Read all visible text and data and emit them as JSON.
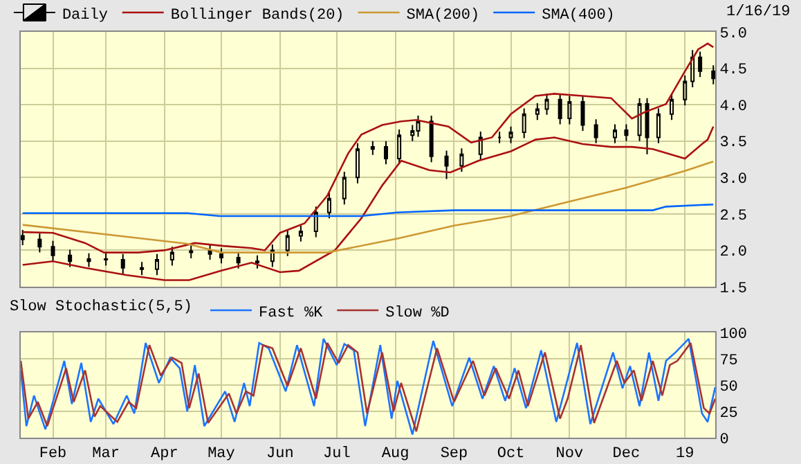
{
  "chart_data": [
    {
      "type": "candlestick",
      "annotations": [
        "1/16/19"
      ],
      "legend": "top",
      "grid": true,
      "tick_labels": "y",
      "xlim": [
        "2018-01-15",
        "2019-01-17"
      ],
      "ylim": [
        1.5,
        5.0
      ],
      "yticks": [
        {
          "value": 1.5,
          "label": "1.5"
        },
        {
          "value": 2.0,
          "label": "2.0"
        },
        {
          "value": 2.5,
          "label": "2.5"
        },
        {
          "value": 3.0,
          "label": "3.0"
        },
        {
          "value": 3.5,
          "label": "3.5"
        },
        {
          "value": 4.0,
          "label": "4.0"
        },
        {
          "value": 4.5,
          "label": "4.5"
        },
        {
          "value": 5.0,
          "label": "5.0"
        }
      ],
      "xticks": [
        "2018-02-01",
        "2018-03-01",
        "2018-04-01",
        "2018-05-01",
        "2018-06-01",
        "2018-07-01",
        "2018-08-01",
        "2018-09-01",
        "2018-10-01",
        "2018-11-01",
        "2018-12-01",
        "2019-01-01"
      ],
      "series": [
        {
          "name": "Daily",
          "type": "candlestick",
          "color": "#000000",
          "x": [
            "2018-01-16",
            "2018-01-25",
            "2018-02-01",
            "2018-02-10",
            "2018-02-20",
            "2018-03-01",
            "2018-03-10",
            "2018-03-20",
            "2018-03-28",
            "2018-04-05",
            "2018-04-15",
            "2018-04-25",
            "2018-05-01",
            "2018-05-10",
            "2018-05-20",
            "2018-05-28",
            "2018-06-05",
            "2018-06-12",
            "2018-06-20",
            "2018-06-27",
            "2018-07-05",
            "2018-07-12",
            "2018-07-20",
            "2018-07-27",
            "2018-08-03",
            "2018-08-10",
            "2018-08-13",
            "2018-08-20",
            "2018-08-28",
            "2018-09-05",
            "2018-09-15",
            "2018-09-25",
            "2018-10-01",
            "2018-10-08",
            "2018-10-15",
            "2018-10-20",
            "2018-10-27",
            "2018-11-01",
            "2018-11-08",
            "2018-11-15",
            "2018-11-25",
            "2018-12-01",
            "2018-12-08",
            "2018-12-12",
            "2018-12-18",
            "2018-12-25",
            "2019-01-01",
            "2019-01-05",
            "2019-01-09",
            "2019-01-16"
          ],
          "ohlc": [
            [
              2.2,
              2.28,
              2.07,
              2.15
            ],
            [
              2.15,
              2.23,
              1.97,
              2.05
            ],
            [
              2.05,
              2.13,
              1.85,
              1.93
            ],
            [
              1.93,
              2.01,
              1.77,
              1.85
            ],
            [
              1.85,
              1.96,
              1.77,
              1.88
            ],
            [
              1.88,
              1.96,
              1.79,
              1.87
            ],
            [
              1.87,
              1.95,
              1.68,
              1.76
            ],
            [
              1.76,
              1.84,
              1.66,
              1.74
            ],
            [
              1.74,
              1.95,
              1.66,
              1.87
            ],
            [
              1.87,
              2.05,
              1.79,
              1.97
            ],
            [
              1.97,
              2.07,
              1.89,
              1.99
            ],
            [
              1.99,
              2.07,
              1.87,
              1.95
            ],
            [
              1.95,
              2.03,
              1.82,
              1.9
            ],
            [
              1.9,
              1.98,
              1.75,
              1.83
            ],
            [
              1.83,
              1.93,
              1.75,
              1.85
            ],
            [
              1.85,
              2.08,
              1.77,
              2.0
            ],
            [
              2.0,
              2.28,
              1.92,
              2.2
            ],
            [
              2.2,
              2.34,
              2.12,
              2.26
            ],
            [
              2.26,
              2.6,
              2.18,
              2.52
            ],
            [
              2.52,
              2.79,
              2.44,
              2.71
            ],
            [
              2.71,
              3.08,
              2.63,
              3.0
            ],
            [
              3.0,
              3.47,
              2.92,
              3.39
            ],
            [
              3.39,
              3.5,
              3.31,
              3.42
            ],
            [
              3.42,
              3.5,
              3.18,
              3.26
            ],
            [
              3.26,
              3.66,
              3.18,
              3.58
            ],
            [
              3.58,
              3.72,
              3.5,
              3.64
            ],
            [
              3.64,
              3.85,
              3.56,
              3.77
            ],
            [
              3.77,
              3.85,
              3.21,
              3.29
            ],
            [
              3.29,
              3.37,
              2.98,
              3.16
            ],
            [
              3.16,
              3.4,
              3.08,
              3.32
            ],
            [
              3.32,
              3.63,
              3.24,
              3.55
            ],
            [
              3.55,
              3.63,
              3.47,
              3.55
            ],
            [
              3.55,
              3.7,
              3.47,
              3.62
            ],
            [
              3.62,
              3.95,
              3.54,
              3.87
            ],
            [
              3.87,
              4.02,
              3.79,
              3.94
            ],
            [
              3.94,
              4.15,
              3.86,
              4.07
            ],
            [
              4.07,
              4.15,
              3.73,
              3.81
            ],
            [
              3.81,
              4.12,
              3.73,
              4.04
            ],
            [
              4.04,
              4.12,
              3.64,
              3.72
            ],
            [
              3.72,
              3.8,
              3.47,
              3.55
            ],
            [
              3.55,
              3.73,
              3.47,
              3.65
            ],
            [
              3.65,
              3.73,
              3.5,
              3.58
            ],
            [
              3.58,
              4.09,
              3.5,
              4.01
            ],
            [
              4.01,
              4.09,
              3.32,
              3.55
            ],
            [
              3.55,
              3.95,
              3.47,
              3.87
            ],
            [
              3.87,
              4.15,
              3.79,
              4.07
            ],
            [
              4.07,
              4.4,
              3.99,
              4.32
            ],
            [
              4.32,
              4.75,
              4.24,
              4.65
            ],
            [
              4.65,
              4.73,
              4.38,
              4.46
            ],
            [
              4.46,
              4.54,
              4.28,
              4.36
            ]
          ]
        },
        {
          "name": "Bollinger Bands(20)",
          "type": "line",
          "color": "#aa1111",
          "x": [
            "2018-01-16",
            "2018-02-01",
            "2018-02-18",
            "2018-02-28",
            "2018-03-18",
            "2018-04-01",
            "2018-04-17",
            "2018-05-02",
            "2018-05-17",
            "2018-05-24",
            "2018-06-01",
            "2018-06-14",
            "2018-06-26",
            "2018-07-07",
            "2018-07-14",
            "2018-07-25",
            "2018-08-04",
            "2018-08-12",
            "2018-08-29",
            "2018-09-10",
            "2018-09-21",
            "2018-10-01",
            "2018-10-14",
            "2018-10-24",
            "2018-11-08",
            "2018-11-23",
            "2018-12-04",
            "2018-12-11",
            "2018-12-22",
            "2019-01-01",
            "2019-01-08",
            "2019-01-13",
            "2019-01-16"
          ],
          "values": [
            2.25,
            2.24,
            2.1,
            1.97,
            1.97,
            2.0,
            2.1,
            2.06,
            2.03,
            2.0,
            2.24,
            2.37,
            2.75,
            3.33,
            3.59,
            3.72,
            3.77,
            3.79,
            3.7,
            3.48,
            3.55,
            3.87,
            4.12,
            4.15,
            4.12,
            4.09,
            3.81,
            3.9,
            4.01,
            4.46,
            4.76,
            4.84,
            4.79
          ]
        },
        {
          "type": "line",
          "color": "#aa1111",
          "x": [
            "2018-01-16",
            "2018-02-01",
            "2018-02-18",
            "2018-03-12",
            "2018-04-01",
            "2018-04-14",
            "2018-05-01",
            "2018-05-17",
            "2018-06-01",
            "2018-06-11",
            "2018-06-30",
            "2018-07-14",
            "2018-07-25",
            "2018-08-04",
            "2018-08-19",
            "2018-08-30",
            "2018-09-14",
            "2018-10-01",
            "2018-10-14",
            "2018-10-24",
            "2018-11-08",
            "2018-11-23",
            "2018-12-04",
            "2018-12-15",
            "2019-01-01",
            "2019-01-10",
            "2019-01-13",
            "2019-01-16"
          ],
          "values": [
            1.8,
            1.85,
            1.76,
            1.66,
            1.59,
            1.59,
            1.72,
            1.83,
            1.7,
            1.72,
            2.0,
            2.44,
            2.89,
            3.23,
            3.1,
            3.07,
            3.23,
            3.36,
            3.52,
            3.55,
            3.46,
            3.42,
            3.42,
            3.39,
            3.26,
            3.46,
            3.52,
            3.7
          ]
        },
        {
          "name": "SMA(200)",
          "type": "line",
          "color": "#cc9933",
          "x": [
            "2018-01-16",
            "2018-04-13",
            "2018-05-01",
            "2018-06-26",
            "2018-08-02",
            "2018-09-01",
            "2018-10-01",
            "2018-11-01",
            "2018-12-01",
            "2019-01-01",
            "2019-01-16"
          ],
          "values": [
            2.35,
            2.09,
            1.97,
            1.97,
            2.16,
            2.34,
            2.47,
            2.67,
            2.86,
            3.09,
            3.22
          ]
        },
        {
          "name": "SMA(400)",
          "type": "line",
          "color": "#0066ff",
          "x": [
            "2018-01-16",
            "2018-04-13",
            "2018-04-30",
            "2018-07-14",
            "2018-08-02",
            "2018-09-01",
            "2018-12-15",
            "2018-12-22",
            "2019-01-16"
          ],
          "values": [
            2.51,
            2.51,
            2.47,
            2.47,
            2.52,
            2.55,
            2.55,
            2.6,
            2.63
          ]
        }
      ]
    },
    {
      "type": "line",
      "legend_title": "Slow Stochastic(5,5)",
      "legend": "top",
      "grid": true,
      "xlim": [
        "2018-01-15",
        "2019-01-17"
      ],
      "ylim": [
        0,
        100
      ],
      "yticks": [
        0,
        25,
        50,
        75,
        100
      ],
      "xticks": [
        {
          "value": "2018-02-01",
          "label": "Feb"
        },
        {
          "value": "2018-03-01",
          "label": "Mar"
        },
        {
          "value": "2018-04-01",
          "label": "Apr"
        },
        {
          "value": "2018-05-01",
          "label": "May"
        },
        {
          "value": "2018-06-01",
          "label": "Jun"
        },
        {
          "value": "2018-07-01",
          "label": "Jul"
        },
        {
          "value": "2018-08-01",
          "label": "Aug"
        },
        {
          "value": "2018-09-01",
          "label": "Sep"
        },
        {
          "value": "2018-10-01",
          "label": "Oct"
        },
        {
          "value": "2018-11-01",
          "label": "Nov"
        },
        {
          "value": "2018-12-01",
          "label": "Dec"
        },
        {
          "value": "2019-01-01",
          "label": "19"
        }
      ],
      "series": [
        {
          "name": "Fast %K",
          "color": "#1a75ff",
          "x": [
            "2018-01-15",
            "2018-01-18",
            "2018-01-22",
            "2018-01-28",
            "2018-02-07",
            "2018-02-11",
            "2018-02-16",
            "2018-02-21",
            "2018-02-25",
            "2018-03-05",
            "2018-03-12",
            "2018-03-16",
            "2018-03-22",
            "2018-03-29",
            "2018-04-04",
            "2018-04-09",
            "2018-04-13",
            "2018-04-17",
            "2018-04-22",
            "2018-05-03",
            "2018-05-08",
            "2018-05-13",
            "2018-05-16",
            "2018-05-21",
            "2018-05-26",
            "2018-06-04",
            "2018-06-10",
            "2018-06-19",
            "2018-06-24",
            "2018-07-01",
            "2018-07-05",
            "2018-07-10",
            "2018-07-16",
            "2018-07-24",
            "2018-07-30",
            "2018-08-02",
            "2018-08-10",
            "2018-08-21",
            "2018-08-31",
            "2018-09-09",
            "2018-09-16",
            "2018-09-22",
            "2018-09-28",
            "2018-10-03",
            "2018-10-09",
            "2018-10-17",
            "2018-10-25",
            "2018-10-29",
            "2018-11-05",
            "2018-11-12",
            "2018-11-24",
            "2018-11-29",
            "2018-12-03",
            "2018-12-08",
            "2018-12-13",
            "2018-12-18",
            "2018-12-22",
            "2018-12-27",
            "2019-01-03",
            "2019-01-10",
            "2019-01-13",
            "2019-01-15",
            "2019-01-17"
          ],
          "values": [
            64,
            11,
            40,
            8,
            73,
            32,
            71,
            15,
            37,
            13,
            40,
            23,
            90,
            52,
            76,
            66,
            25,
            69,
            11,
            44,
            15,
            52,
            30,
            90,
            85,
            44,
            88,
            30,
            94,
            69,
            89,
            83,
            11,
            88,
            18,
            54,
            3,
            92,
            30,
            76,
            37,
            68,
            35,
            66,
            28,
            83,
            15,
            42,
            90,
            13,
            81,
            47,
            68,
            30,
            81,
            35,
            73,
            81,
            94,
            23,
            15,
            32,
            48
          ]
        },
        {
          "name": "Slow %D",
          "color": "#a83232",
          "x": [
            "2018-01-15",
            "2018-01-19",
            "2018-01-24",
            "2018-01-29",
            "2018-02-08",
            "2018-02-12",
            "2018-02-18",
            "2018-02-23",
            "2018-02-26",
            "2018-03-07",
            "2018-03-13",
            "2018-03-17",
            "2018-03-24",
            "2018-03-30",
            "2018-04-05",
            "2018-04-10",
            "2018-04-14",
            "2018-04-19",
            "2018-04-24",
            "2018-05-05",
            "2018-05-09",
            "2018-05-14",
            "2018-05-18",
            "2018-05-23",
            "2018-05-28",
            "2018-06-05",
            "2018-06-12",
            "2018-06-20",
            "2018-06-26",
            "2018-07-02",
            "2018-07-07",
            "2018-07-12",
            "2018-07-17",
            "2018-07-25",
            "2018-07-31",
            "2018-08-04",
            "2018-08-12",
            "2018-08-23",
            "2018-09-01",
            "2018-09-11",
            "2018-09-17",
            "2018-09-23",
            "2018-09-30",
            "2018-10-05",
            "2018-10-10",
            "2018-10-19",
            "2018-10-27",
            "2018-10-31",
            "2018-11-07",
            "2018-11-14",
            "2018-11-26",
            "2018-11-30",
            "2018-12-05",
            "2018-12-09",
            "2018-12-15",
            "2018-12-20",
            "2018-12-24",
            "2018-12-28",
            "2019-01-04",
            "2019-01-11",
            "2019-01-14",
            "2019-01-17"
          ],
          "values": [
            73,
            18,
            34,
            11,
            66,
            34,
            64,
            20,
            30,
            15,
            34,
            28,
            88,
            59,
            76,
            71,
            28,
            61,
            14,
            42,
            23,
            44,
            40,
            88,
            85,
            49,
            85,
            37,
            90,
            71,
            88,
            81,
            23,
            81,
            25,
            52,
            6,
            85,
            34,
            73,
            40,
            66,
            37,
            64,
            30,
            81,
            18,
            37,
            88,
            14,
            73,
            52,
            64,
            35,
            73,
            40,
            69,
            73,
            90,
            28,
            23,
            37
          ]
        }
      ]
    }
  ]
}
